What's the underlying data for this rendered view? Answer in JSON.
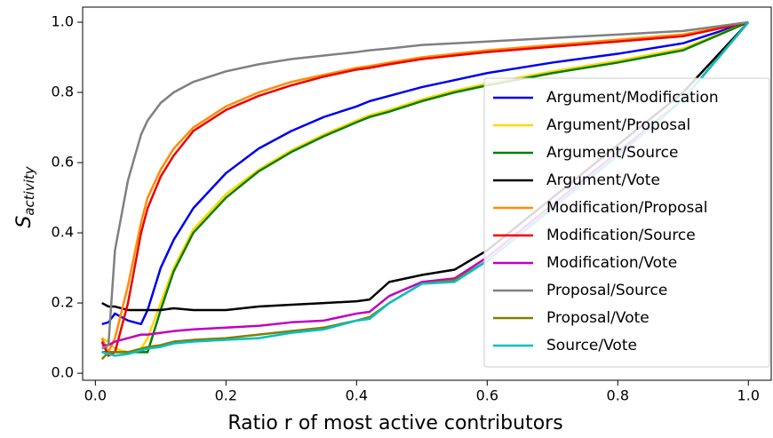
{
  "chart_data": {
    "type": "line",
    "xlabel": "Ratio r of most active contributors",
    "ylabel": "S",
    "ylabel_subscript": "activity",
    "x": [
      0.01,
      0.02,
      0.03,
      0.05,
      0.07,
      0.08,
      0.1,
      0.12,
      0.15,
      0.2,
      0.25,
      0.3,
      0.35,
      0.4,
      0.42,
      0.45,
      0.5,
      0.55,
      0.6,
      0.7,
      0.8,
      0.9,
      1.0
    ],
    "xlim": [
      -0.0195,
      1.035
    ],
    "ylim": [
      -0.02,
      1.043
    ],
    "xticks": [
      {
        "value": 0,
        "label": "0.0"
      },
      {
        "value": 0.2,
        "label": "0.2"
      },
      {
        "value": 0.4,
        "label": "0.4"
      },
      {
        "value": 0.6,
        "label": "0.6"
      },
      {
        "value": 0.8,
        "label": "0.8"
      },
      {
        "value": 1,
        "label": "1.0"
      }
    ],
    "yticks": [
      {
        "value": 0,
        "label": "0.0"
      },
      {
        "value": 0.2,
        "label": "0.2"
      },
      {
        "value": 0.4,
        "label": "0.4"
      },
      {
        "value": 0.6,
        "label": "0.6"
      },
      {
        "value": 0.8,
        "label": "0.8"
      },
      {
        "value": 1,
        "label": "1.0"
      }
    ],
    "grid": false,
    "legend": "lower right",
    "series": [
      {
        "name": "Argument/Modification",
        "color": "#0000ee",
        "values": [
          0.14,
          0.145,
          0.17,
          0.15,
          0.14,
          0.18,
          0.3,
          0.38,
          0.47,
          0.57,
          0.64,
          0.69,
          0.73,
          0.76,
          0.775,
          0.79,
          0.815,
          0.835,
          0.855,
          0.885,
          0.91,
          0.94,
          1.0
        ]
      },
      {
        "name": "Argument/Proposal",
        "color": "#ffd700",
        "values": [
          0.1,
          0.09,
          0.07,
          0.06,
          0.07,
          0.1,
          0.2,
          0.3,
          0.41,
          0.51,
          0.58,
          0.635,
          0.68,
          0.72,
          0.735,
          0.75,
          0.78,
          0.805,
          0.825,
          0.86,
          0.89,
          0.925,
          1.0
        ]
      },
      {
        "name": "Argument/Source",
        "color": "#008000",
        "values": [
          0.06,
          0.06,
          0.06,
          0.06,
          0.06,
          0.06,
          0.18,
          0.29,
          0.4,
          0.5,
          0.575,
          0.63,
          0.675,
          0.715,
          0.73,
          0.745,
          0.775,
          0.8,
          0.82,
          0.855,
          0.885,
          0.92,
          1.0
        ]
      },
      {
        "name": "Argument/Vote",
        "color": "#000000",
        "values": [
          0.2,
          0.19,
          0.19,
          0.18,
          0.18,
          0.18,
          0.18,
          0.185,
          0.18,
          0.18,
          0.19,
          0.195,
          0.2,
          0.205,
          0.21,
          0.26,
          0.28,
          0.295,
          0.35,
          0.5,
          0.65,
          0.8,
          1.0
        ]
      },
      {
        "name": "Modification/Proposal",
        "color": "#ff8c00",
        "values": [
          0.1,
          0.06,
          0.1,
          0.25,
          0.43,
          0.5,
          0.58,
          0.64,
          0.7,
          0.76,
          0.8,
          0.83,
          0.85,
          0.87,
          0.875,
          0.885,
          0.9,
          0.91,
          0.92,
          0.935,
          0.95,
          0.965,
          1.0
        ]
      },
      {
        "name": "Modification/Source",
        "color": "#ee0000",
        "values": [
          0.09,
          0.05,
          0.06,
          0.2,
          0.4,
          0.47,
          0.56,
          0.62,
          0.69,
          0.75,
          0.79,
          0.82,
          0.845,
          0.865,
          0.87,
          0.88,
          0.895,
          0.905,
          0.915,
          0.93,
          0.945,
          0.96,
          1.0
        ]
      },
      {
        "name": "Modification/Vote",
        "color": "#c000c0",
        "values": [
          0.08,
          0.08,
          0.09,
          0.1,
          0.11,
          0.11,
          0.115,
          0.12,
          0.125,
          0.13,
          0.135,
          0.145,
          0.15,
          0.17,
          0.175,
          0.22,
          0.26,
          0.27,
          0.33,
          0.48,
          0.63,
          0.78,
          1.0
        ]
      },
      {
        "name": "Proposal/Source",
        "color": "#808080",
        "values": [
          0.07,
          0.08,
          0.35,
          0.55,
          0.68,
          0.72,
          0.77,
          0.8,
          0.83,
          0.86,
          0.88,
          0.895,
          0.905,
          0.915,
          0.92,
          0.925,
          0.935,
          0.94,
          0.945,
          0.955,
          0.965,
          0.975,
          1.0
        ]
      },
      {
        "name": "Proposal/Vote",
        "color": "#808000",
        "values": [
          0.04,
          0.06,
          0.06,
          0.06,
          0.07,
          0.075,
          0.08,
          0.09,
          0.095,
          0.1,
          0.11,
          0.12,
          0.13,
          0.15,
          0.16,
          0.2,
          0.255,
          0.265,
          0.32,
          0.47,
          0.62,
          0.78,
          1.0
        ]
      },
      {
        "name": "Source/Vote",
        "color": "#00c0c0",
        "values": [
          0.06,
          0.055,
          0.05,
          0.055,
          0.065,
          0.07,
          0.075,
          0.085,
          0.09,
          0.095,
          0.1,
          0.115,
          0.125,
          0.15,
          0.155,
          0.2,
          0.255,
          0.26,
          0.32,
          0.47,
          0.62,
          0.78,
          1.0
        ]
      }
    ]
  }
}
